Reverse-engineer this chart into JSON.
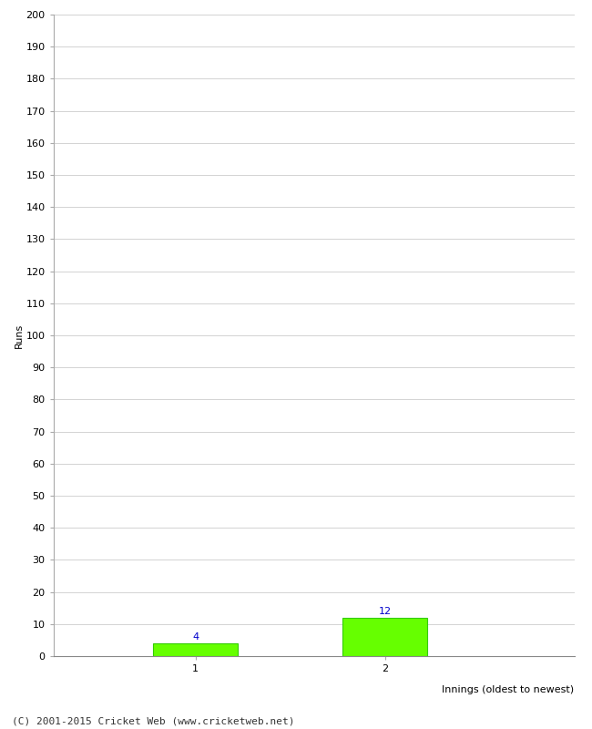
{
  "categories": [
    1,
    2
  ],
  "values": [
    4,
    12
  ],
  "bar_color": "#66ff00",
  "bar_edge_color": "#33cc00",
  "ylabel": "Runs",
  "xlabel": "Innings (oldest to newest)",
  "ylim": [
    0,
    200
  ],
  "yticks": [
    0,
    10,
    20,
    30,
    40,
    50,
    60,
    70,
    80,
    90,
    100,
    110,
    120,
    130,
    140,
    150,
    160,
    170,
    180,
    190,
    200
  ],
  "xticks": [
    1,
    2
  ],
  "label_color": "#0000cc",
  "label_fontsize": 8,
  "tick_fontsize": 8,
  "ylabel_fontsize": 8,
  "xlabel_fontsize": 8,
  "footer_text": "(C) 2001-2015 Cricket Web (www.cricketweb.net)",
  "footer_fontsize": 8,
  "background_color": "#ffffff",
  "grid_color": "#cccccc",
  "bar_width": 0.45,
  "xlim": [
    0.25,
    3.0
  ]
}
